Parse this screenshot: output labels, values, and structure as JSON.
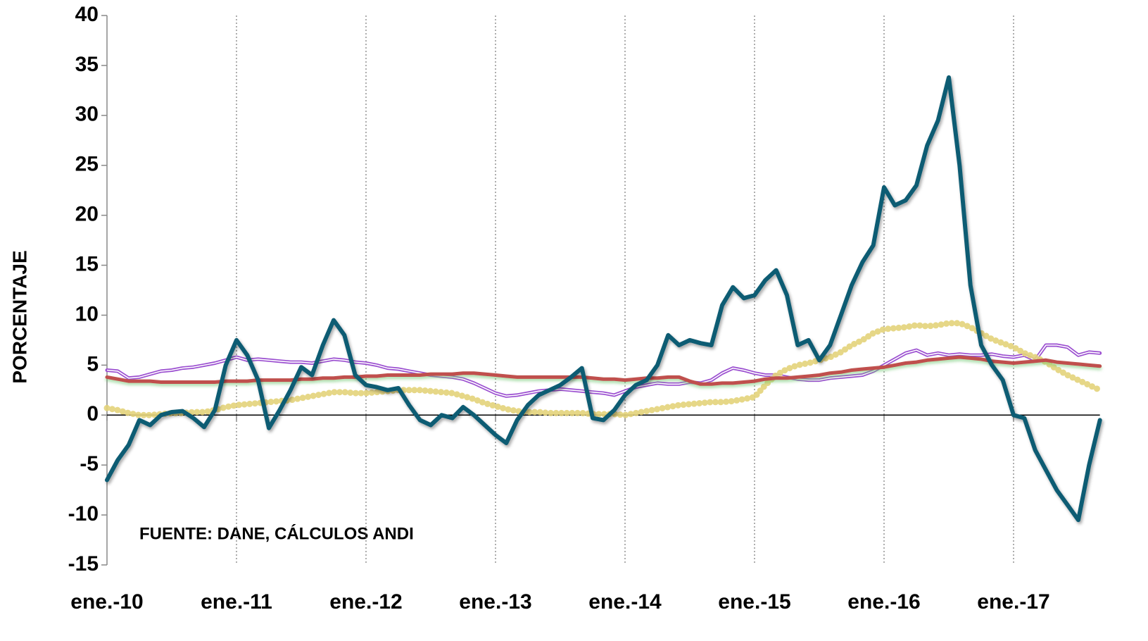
{
  "chart_data": {
    "type": "line",
    "y_label": "PORCENTAJE",
    "annotation": "FUENTE: DANE, CÁLCULOS ANDI",
    "categories": [
      "ene.-10",
      null,
      null,
      null,
      null,
      null,
      null,
      null,
      null,
      null,
      null,
      null,
      "ene.-11",
      null,
      null,
      null,
      null,
      null,
      null,
      null,
      null,
      null,
      null,
      null,
      "ene.-12",
      null,
      null,
      null,
      null,
      null,
      null,
      null,
      null,
      null,
      null,
      null,
      "ene.-13",
      null,
      null,
      null,
      null,
      null,
      null,
      null,
      null,
      null,
      null,
      null,
      "ene.-14",
      null,
      null,
      null,
      null,
      null,
      null,
      null,
      null,
      null,
      null,
      null,
      "ene.-15",
      null,
      null,
      null,
      null,
      null,
      null,
      null,
      null,
      null,
      null,
      null,
      "ene.-16",
      null,
      null,
      null,
      null,
      null,
      null,
      null,
      null,
      null,
      null,
      null,
      "ene.-17",
      null,
      null,
      null,
      null,
      null,
      null,
      null,
      null
    ],
    "series": [
      {
        "color": "#9b4fd0",
        "style": "double",
        "values": [
          4.5,
          4.4,
          3.7,
          3.8,
          4.1,
          4.4,
          4.5,
          4.7,
          4.8,
          5.0,
          5.2,
          5.5,
          5.8,
          5.5,
          5.6,
          5.5,
          5.4,
          5.3,
          5.3,
          5.2,
          5.4,
          5.6,
          5.5,
          5.3,
          5.2,
          5.0,
          4.7,
          4.6,
          4.4,
          4.2,
          4.0,
          3.9,
          3.8,
          3.6,
          3.2,
          2.7,
          2.2,
          1.9,
          2.0,
          2.2,
          2.4,
          2.5,
          2.6,
          2.5,
          2.4,
          2.3,
          2.2,
          2.0,
          2.4,
          2.8,
          3.0,
          3.2,
          3.1,
          3.1,
          3.3,
          3.2,
          3.5,
          4.2,
          4.7,
          4.5,
          4.2,
          4.0,
          4.0,
          3.8,
          3.6,
          3.5,
          3.5,
          3.7,
          3.8,
          3.9,
          4.0,
          4.4,
          5.0,
          5.6,
          6.2,
          6.5,
          6.0,
          6.2,
          6.0,
          6.1,
          6.0,
          6.0,
          6.1,
          5.9,
          5.8,
          6.0,
          5.5,
          7.0,
          7.0,
          6.8,
          6.0,
          6.3,
          6.2
        ]
      },
      {
        "color": "#e3d37a",
        "style": "dotted",
        "values": [
          0.7,
          0.5,
          0.2,
          0.0,
          0.0,
          0.1,
          0.2,
          0.2,
          0.3,
          0.3,
          0.5,
          0.8,
          1.0,
          1.1,
          1.2,
          1.3,
          1.4,
          1.5,
          1.7,
          1.9,
          2.1,
          2.3,
          2.3,
          2.2,
          2.2,
          2.3,
          2.4,
          2.5,
          2.5,
          2.5,
          2.4,
          2.3,
          2.2,
          1.9,
          1.6,
          1.2,
          0.9,
          0.6,
          0.4,
          0.3,
          0.3,
          0.2,
          0.2,
          0.2,
          0.2,
          0.1,
          0.1,
          0.1,
          0.0,
          0.2,
          0.4,
          0.6,
          0.8,
          1.0,
          1.1,
          1.2,
          1.3,
          1.3,
          1.4,
          1.6,
          1.8,
          3.0,
          4.0,
          4.6,
          5.0,
          5.2,
          5.5,
          5.8,
          6.3,
          7.0,
          7.5,
          8.2,
          8.6,
          8.7,
          8.8,
          9.0,
          8.9,
          9.0,
          9.2,
          9.2,
          8.8,
          8.2,
          7.6,
          7.2,
          6.8,
          6.2,
          5.8,
          5.3,
          4.6,
          4.0,
          3.5,
          3.0,
          2.5
        ]
      },
      {
        "color": "#c0504d",
        "style": "solid",
        "values": [
          3.8,
          3.6,
          3.4,
          3.4,
          3.4,
          3.3,
          3.3,
          3.3,
          3.3,
          3.3,
          3.3,
          3.4,
          3.4,
          3.4,
          3.5,
          3.5,
          3.5,
          3.5,
          3.6,
          3.6,
          3.7,
          3.7,
          3.8,
          3.8,
          3.9,
          3.9,
          4.0,
          4.0,
          4.0,
          4.0,
          4.1,
          4.1,
          4.1,
          4.2,
          4.2,
          4.1,
          4.0,
          3.9,
          3.8,
          3.8,
          3.8,
          3.8,
          3.8,
          3.8,
          3.8,
          3.7,
          3.6,
          3.6,
          3.5,
          3.6,
          3.7,
          3.7,
          3.8,
          3.8,
          3.4,
          3.1,
          3.1,
          3.2,
          3.2,
          3.3,
          3.4,
          3.6,
          3.7,
          3.7,
          3.8,
          3.9,
          4.0,
          4.2,
          4.3,
          4.5,
          4.6,
          4.7,
          4.8,
          5.0,
          5.2,
          5.3,
          5.5,
          5.6,
          5.7,
          5.8,
          5.7,
          5.6,
          5.4,
          5.3,
          5.2,
          5.3,
          5.4,
          5.5,
          5.3,
          5.2,
          5.1,
          5.0,
          4.9
        ]
      },
      {
        "color": "#0f5b73",
        "style": "solid",
        "values": [
          -6.5,
          -4.5,
          -3,
          -0.5,
          -1,
          0,
          0.3,
          0.4,
          -0.3,
          -1.2,
          0.5,
          5,
          7.5,
          6,
          3.5,
          -1.3,
          0.5,
          2.5,
          4.8,
          4,
          7,
          9.5,
          8,
          4,
          3,
          2.8,
          2.5,
          2.7,
          1,
          -0.5,
          -1,
          0,
          -0.3,
          0.8,
          0,
          -1,
          -2,
          -2.8,
          -0.5,
          1,
          2,
          2.5,
          3,
          3.8,
          4.7,
          -0.3,
          -0.5,
          0.5,
          2,
          3,
          3.5,
          5,
          8,
          7,
          7.5,
          7.2,
          7,
          11,
          12.8,
          11.7,
          12,
          13.5,
          14.5,
          12,
          7,
          7.5,
          5.5,
          7,
          10,
          13,
          15.3,
          17,
          22.8,
          21,
          21.5,
          23,
          27,
          29.5,
          33.8,
          25,
          13,
          7,
          5,
          3.5,
          0,
          -0.3,
          -3.5,
          -5.5,
          -7.5,
          -9,
          -10.5,
          -5,
          -0.5
        ]
      }
    ],
    "ylim": [
      -15,
      40
    ],
    "yticks": [
      -15,
      -10,
      -5,
      0,
      5,
      10,
      15,
      20,
      25,
      30,
      35,
      40
    ],
    "grid": "x"
  }
}
